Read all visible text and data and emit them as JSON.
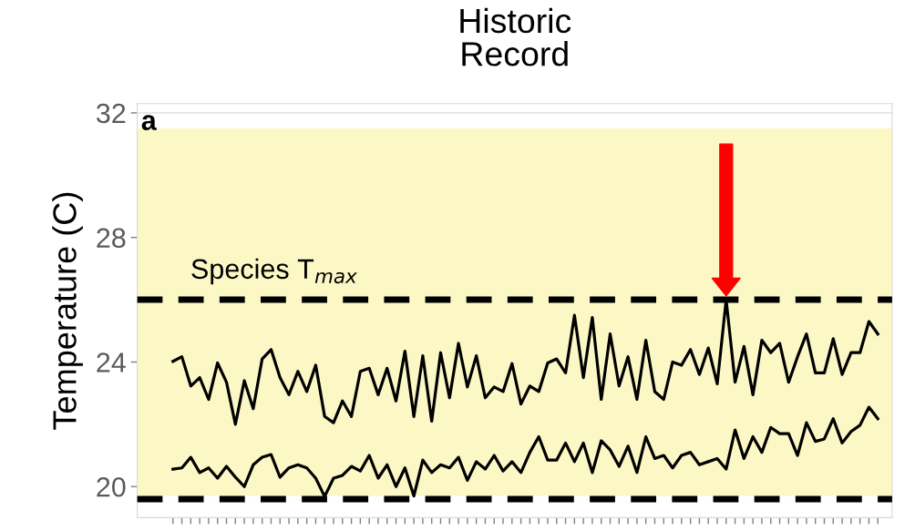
{
  "chart_data": {
    "type": "line",
    "title": "Historic\nRecord",
    "ylabel": "Temperature (C)",
    "annotations": [
      "a"
    ],
    "categories": [
      null,
      null,
      null,
      null,
      null,
      null,
      null,
      null,
      null,
      null,
      null,
      null,
      null,
      null,
      null,
      null,
      null,
      null,
      null,
      null,
      null,
      null,
      null,
      null,
      null,
      null,
      null,
      null,
      null,
      null,
      null,
      null,
      null,
      null,
      null,
      null,
      null,
      null,
      null,
      null,
      null,
      null,
      null,
      null,
      null,
      null,
      null,
      null,
      null,
      null,
      null,
      null,
      null,
      null,
      null,
      null,
      null,
      null,
      null,
      null,
      null,
      null,
      null,
      null,
      null,
      null,
      null,
      null,
      null,
      null,
      null,
      null,
      null,
      null,
      null,
      null,
      null,
      null,
      null,
      null
    ],
    "ylim": [
      19,
      32.3
    ],
    "yticks": [
      20,
      24,
      28,
      32
    ],
    "tick_labels": "y",
    "grid": "y",
    "bands": [
      {
        "axis": "y",
        "from": 19.7,
        "to": 31.5,
        "color": "#fbf8c5"
      }
    ],
    "ref_lines": [
      {
        "axis": "y",
        "value": 26,
        "label": "Species T$_{max}$",
        "color": "#000000",
        "line_style": "dashed"
      },
      {
        "axis": "y",
        "value": 19.6,
        "label": null,
        "color": "#000000",
        "line_style": "dashed"
      }
    ],
    "series": [
      {
        "color": "#000000",
        "values": [
          24.02,
          24.17,
          23.23,
          23.5,
          22.8,
          23.97,
          23.35,
          22.0,
          23.4,
          22.5,
          24.1,
          24.4,
          23.5,
          22.95,
          23.7,
          23.05,
          23.9,
          22.25,
          22.05,
          22.75,
          22.25,
          23.7,
          23.8,
          22.95,
          23.8,
          22.75,
          24.35,
          22.25,
          24.2,
          22.1,
          24.3,
          22.85,
          24.6,
          23.2,
          24.2,
          22.85,
          23.2,
          23.05,
          23.95,
          22.65,
          23.23,
          23.05,
          23.97,
          24.1,
          23.65,
          25.5,
          23.5,
          25.43,
          22.8,
          24.9,
          23.23,
          24.17,
          22.8,
          24.7,
          23.05,
          22.8,
          24.0,
          23.9,
          24.4,
          23.6,
          24.45,
          23.3,
          26.0,
          23.35,
          24.5,
          22.95,
          24.7,
          24.3,
          24.6,
          23.35,
          24.17,
          24.9,
          23.65,
          23.65,
          24.75,
          23.6,
          24.3,
          24.3,
          25.3,
          24.9
        ]
      },
      {
        "color": "#000000",
        "values": [
          20.56,
          20.6,
          20.94,
          20.45,
          20.6,
          20.27,
          20.65,
          20.3,
          20.0,
          20.7,
          20.94,
          21.03,
          20.3,
          20.6,
          20.7,
          20.6,
          20.27,
          19.68,
          20.27,
          20.36,
          20.65,
          20.5,
          21.0,
          20.27,
          20.7,
          20.0,
          20.6,
          19.7,
          20.85,
          20.45,
          20.7,
          20.6,
          20.94,
          20.2,
          20.8,
          20.56,
          21.0,
          20.5,
          20.8,
          20.45,
          21.1,
          21.6,
          20.85,
          20.85,
          21.4,
          20.8,
          21.4,
          20.45,
          21.47,
          21.18,
          20.65,
          21.3,
          20.45,
          21.6,
          20.9,
          21.0,
          20.6,
          21.0,
          21.1,
          20.7,
          20.8,
          20.9,
          20.56,
          21.82,
          20.9,
          21.6,
          21.1,
          21.9,
          21.7,
          21.7,
          21.0,
          22.05,
          21.45,
          21.53,
          22.18,
          21.4,
          21.77,
          21.97,
          22.55,
          22.18
        ]
      }
    ]
  }
}
